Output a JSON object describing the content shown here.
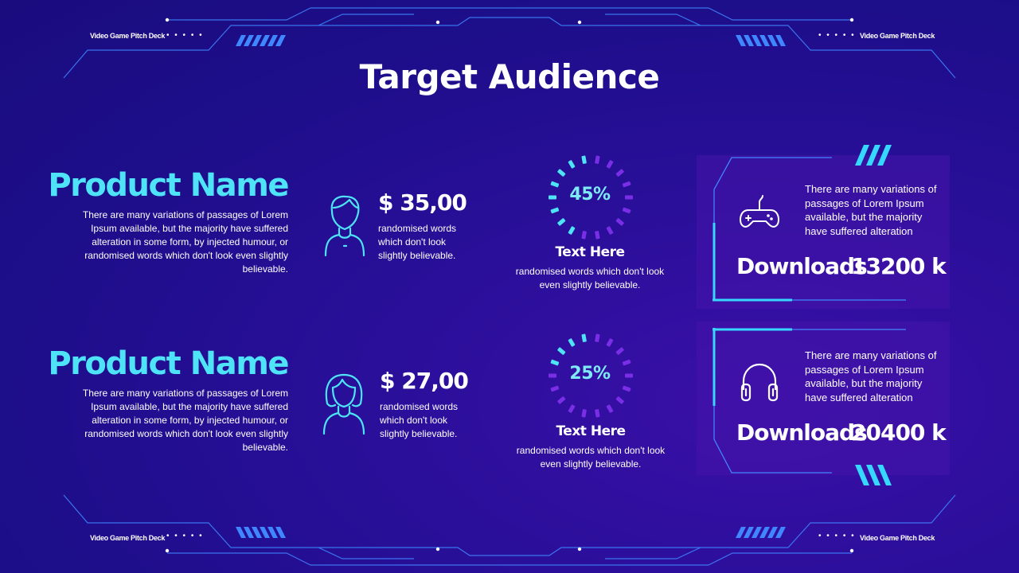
{
  "brand": {
    "label": "Video Game Pitch Deck",
    "dots": "• • • • •"
  },
  "page_title": "Target Audience",
  "products": [
    {
      "name": "Product Name",
      "description": "There are many variations of passages of Lorem Ipsum available, but the majority have suffered alteration in some form, by injected humour, or randomised words which don't look even slightly believable.",
      "avatar_icon": "man-avatar-icon",
      "price": "$ 35,00",
      "price_sub": "randomised words which don't look slightly believable.",
      "percent": 45,
      "percent_label": "45%",
      "text_head": "Text Here",
      "text_sub": "randomised words which don't look even slightly believable.",
      "card_icon": "gamepad-icon",
      "card_text": "There are many variations of passages of Lorem Ipsum available, but the majority have suffered alteration",
      "downloads_label": "Downloads",
      "downloads_value": "13200 k"
    },
    {
      "name": "Product Name",
      "description": "There are many variations of passages of Lorem Ipsum available, but the majority have suffered alteration in some form, by injected humour, or randomised words which don't look even slightly believable.",
      "avatar_icon": "woman-avatar-icon",
      "price": "$ 27,00",
      "price_sub": "randomised words which don't look slightly believable.",
      "percent": 25,
      "percent_label": "25%",
      "text_head": "Text Here",
      "text_sub": "randomised words which don't look even slightly believable.",
      "card_icon": "headphones-icon",
      "card_text": "There are many variations of passages of Lorem Ipsum available, but the majority have suffered alteration",
      "downloads_label": "Downloads",
      "downloads_value": "20400 k"
    }
  ],
  "colors": {
    "accent_cyan": "#4ee3f7",
    "accent_purple": "#7a2ee6",
    "line_blue": "#3b7bff",
    "background": "#1d0e8a"
  }
}
